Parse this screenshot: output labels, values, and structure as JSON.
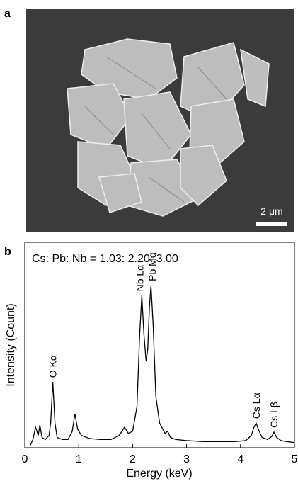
{
  "panel_a": {
    "label": "a",
    "scale_bar": "2 μm"
  },
  "panel_b": {
    "label": "b"
  },
  "chart_data": {
    "type": "line",
    "note": "Cs: Pb: Nb = 1.03: 2.20: 3.00",
    "x_label": "Energy (keV)",
    "y_label": "Intensity (Count)",
    "color": "#000000",
    "x": [
      0.1,
      0.15,
      0.2,
      0.25,
      0.28,
      0.32,
      0.38,
      0.45,
      0.48,
      0.52,
      0.56,
      0.6,
      0.7,
      0.8,
      0.88,
      0.93,
      0.98,
      1.05,
      1.2,
      1.4,
      1.6,
      1.75,
      1.85,
      1.92,
      2.0,
      2.08,
      2.13,
      2.17,
      2.21,
      2.25,
      2.28,
      2.31,
      2.34,
      2.38,
      2.43,
      2.5,
      2.6,
      2.65,
      2.7,
      2.8,
      3.0,
      3.3,
      3.6,
      3.9,
      4.1,
      4.2,
      4.25,
      4.29,
      4.33,
      4.4,
      4.5,
      4.58,
      4.62,
      4.67,
      4.75,
      4.85,
      5.0
    ],
    "values": [
      1,
      4,
      10,
      6,
      11,
      5,
      4,
      6,
      12,
      32,
      12,
      5,
      4,
      4,
      8,
      16.5,
      9,
      6,
      4.5,
      4,
      4,
      6,
      10,
      7,
      8,
      20,
      55,
      74,
      55,
      42,
      48,
      68,
      79,
      60,
      25,
      12,
      7,
      8,
      5,
      4,
      3.5,
      3,
      3,
      3,
      3.5,
      6,
      10,
      12,
      9,
      5,
      4,
      5.5,
      7.6,
      5,
      3.5,
      3,
      2.5
    ],
    "annotations": [
      {
        "text": "O Kα",
        "x": 0.52,
        "y": 32
      },
      {
        "text": "Nb Lα",
        "x": 2.13,
        "y": 74
      },
      {
        "text": "Pb Mα",
        "x": 2.36,
        "y": 79
      },
      {
        "text": "Cs Lα",
        "x": 4.29,
        "y": 12
      },
      {
        "text": "Cs Lβ",
        "x": 4.62,
        "y": 7.6
      }
    ],
    "xlim": [
      0,
      5
    ],
    "xticks": [
      0,
      1,
      2,
      3,
      4,
      5
    ],
    "ylim": [
      0,
      100
    ]
  }
}
